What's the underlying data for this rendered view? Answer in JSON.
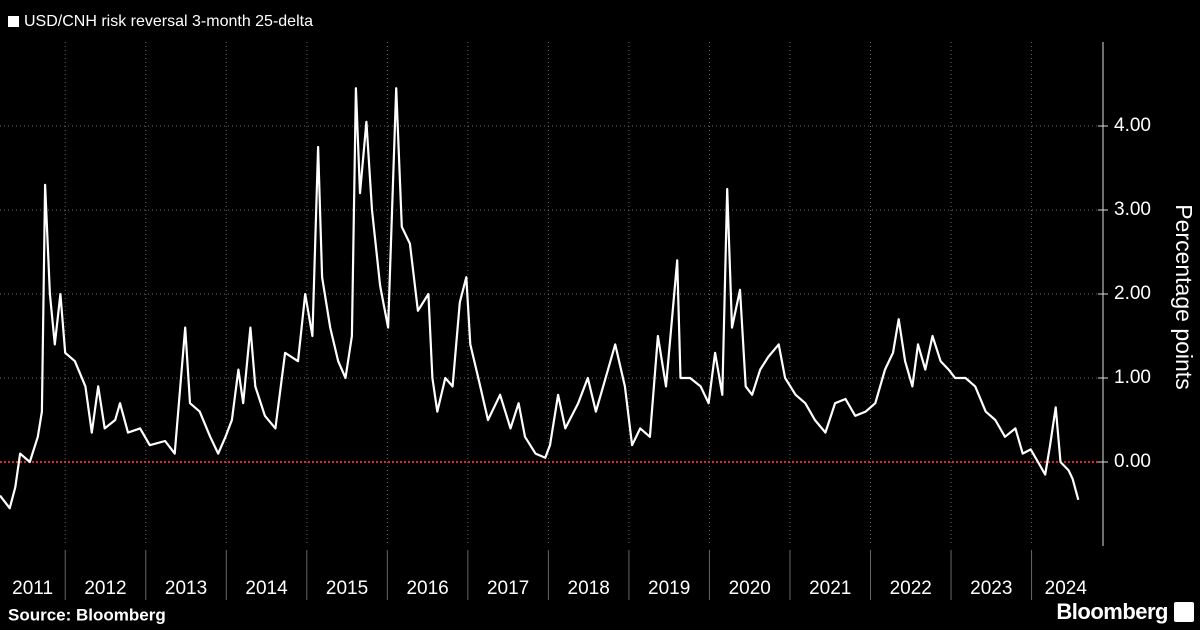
{
  "chart_data": {
    "type": "line",
    "series": [
      {
        "name": "USD/CNH risk reversal 3-month 25-delta",
        "color": "#ffffff",
        "x": [
          2011.19,
          2011.31,
          2011.38,
          2011.44,
          2011.56,
          2011.66,
          2011.71,
          2011.75,
          2011.81,
          2011.87,
          2011.94,
          2012.0,
          2012.12,
          2012.25,
          2012.33,
          2012.41,
          2012.49,
          2012.62,
          2012.68,
          2012.78,
          2012.93,
          2013.05,
          2013.24,
          2013.36,
          2013.49,
          2013.55,
          2013.67,
          2013.8,
          2013.9,
          2013.99,
          2014.07,
          2014.15,
          2014.21,
          2014.3,
          2014.36,
          2014.48,
          2014.61,
          2014.73,
          2014.89,
          2014.98,
          2015.07,
          2015.14,
          2015.19,
          2015.29,
          2015.39,
          2015.48,
          2015.56,
          2015.61,
          2015.66,
          2015.74,
          2015.81,
          2015.91,
          2016.01,
          2016.11,
          2016.18,
          2016.28,
          2016.38,
          2016.51,
          2016.56,
          2016.62,
          2016.72,
          2016.81,
          2016.9,
          2016.98,
          2017.03,
          2017.13,
          2017.25,
          2017.4,
          2017.53,
          2017.63,
          2017.71,
          2017.84,
          2017.96,
          2018.02,
          2018.12,
          2018.21,
          2018.37,
          2018.49,
          2018.59,
          2018.71,
          2018.83,
          2018.95,
          2019.04,
          2019.14,
          2019.26,
          2019.36,
          2019.46,
          2019.6,
          2019.64,
          2019.76,
          2019.89,
          2019.99,
          2020.07,
          2020.16,
          2020.22,
          2020.28,
          2020.38,
          2020.45,
          2020.53,
          2020.63,
          2020.73,
          2020.86,
          2020.94,
          2021.07,
          2021.19,
          2021.31,
          2021.44,
          2021.56,
          2021.69,
          2021.81,
          2021.94,
          2022.06,
          2022.18,
          2022.28,
          2022.35,
          2022.43,
          2022.52,
          2022.59,
          2022.68,
          2022.77,
          2022.87,
          2022.97,
          2023.05,
          2023.18,
          2023.3,
          2023.43,
          2023.55,
          2023.67,
          2023.8,
          2023.89,
          2023.99,
          2024.08,
          2024.17,
          2024.23,
          2024.3,
          2024.36,
          2024.46,
          2024.51,
          2024.58
        ],
        "values": [
          -0.4,
          -0.55,
          -0.3,
          0.1,
          0.0,
          0.3,
          0.6,
          3.3,
          2.0,
          1.4,
          2.0,
          1.3,
          1.2,
          0.9,
          0.35,
          0.9,
          0.4,
          0.5,
          0.7,
          0.35,
          0.4,
          0.2,
          0.25,
          0.1,
          1.6,
          0.7,
          0.6,
          0.3,
          0.1,
          0.3,
          0.5,
          1.1,
          0.7,
          1.6,
          0.9,
          0.55,
          0.4,
          1.3,
          1.2,
          2.0,
          1.5,
          3.75,
          2.2,
          1.6,
          1.2,
          1.0,
          1.5,
          4.45,
          3.2,
          4.05,
          3.0,
          2.1,
          1.6,
          4.45,
          2.8,
          2.6,
          1.8,
          2.0,
          1.0,
          0.6,
          1.0,
          0.9,
          1.9,
          2.2,
          1.4,
          1.0,
          0.5,
          0.8,
          0.4,
          0.7,
          0.3,
          0.1,
          0.05,
          0.2,
          0.8,
          0.4,
          0.7,
          1.0,
          0.6,
          1.0,
          1.4,
          0.9,
          0.2,
          0.4,
          0.3,
          1.5,
          0.9,
          2.4,
          1.0,
          1.0,
          0.9,
          0.7,
          1.3,
          0.8,
          3.25,
          1.6,
          2.05,
          0.9,
          0.8,
          1.1,
          1.25,
          1.4,
          1.0,
          0.8,
          0.7,
          0.5,
          0.35,
          0.7,
          0.75,
          0.55,
          0.6,
          0.7,
          1.1,
          1.3,
          1.7,
          1.2,
          0.9,
          1.4,
          1.1,
          1.5,
          1.2,
          1.1,
          1.0,
          1.0,
          0.9,
          0.6,
          0.5,
          0.3,
          0.4,
          0.1,
          0.15,
          0.0,
          -0.15,
          0.2,
          0.65,
          0.0,
          -0.1,
          -0.2,
          -0.45
        ]
      }
    ],
    "xlim": [
      2011.19,
      2024.85
    ],
    "xticks": [
      2011,
      2012,
      2013,
      2014,
      2015,
      2016,
      2017,
      2018,
      2019,
      2020,
      2021,
      2022,
      2023,
      2024
    ],
    "ylim": [
      -1,
      5
    ],
    "yticks": [
      {
        "value": 0,
        "label": "0.00"
      },
      {
        "value": 1,
        "label": "1.00"
      },
      {
        "value": 2,
        "label": "2.00"
      },
      {
        "value": 3,
        "label": "3.00"
      },
      {
        "value": 4,
        "label": "4.00"
      }
    ],
    "ylabel": "Percentage points",
    "grid": true,
    "zero_line_color": "#d62a2a",
    "source": "Source: Bloomberg",
    "brand": "Bloomberg"
  }
}
